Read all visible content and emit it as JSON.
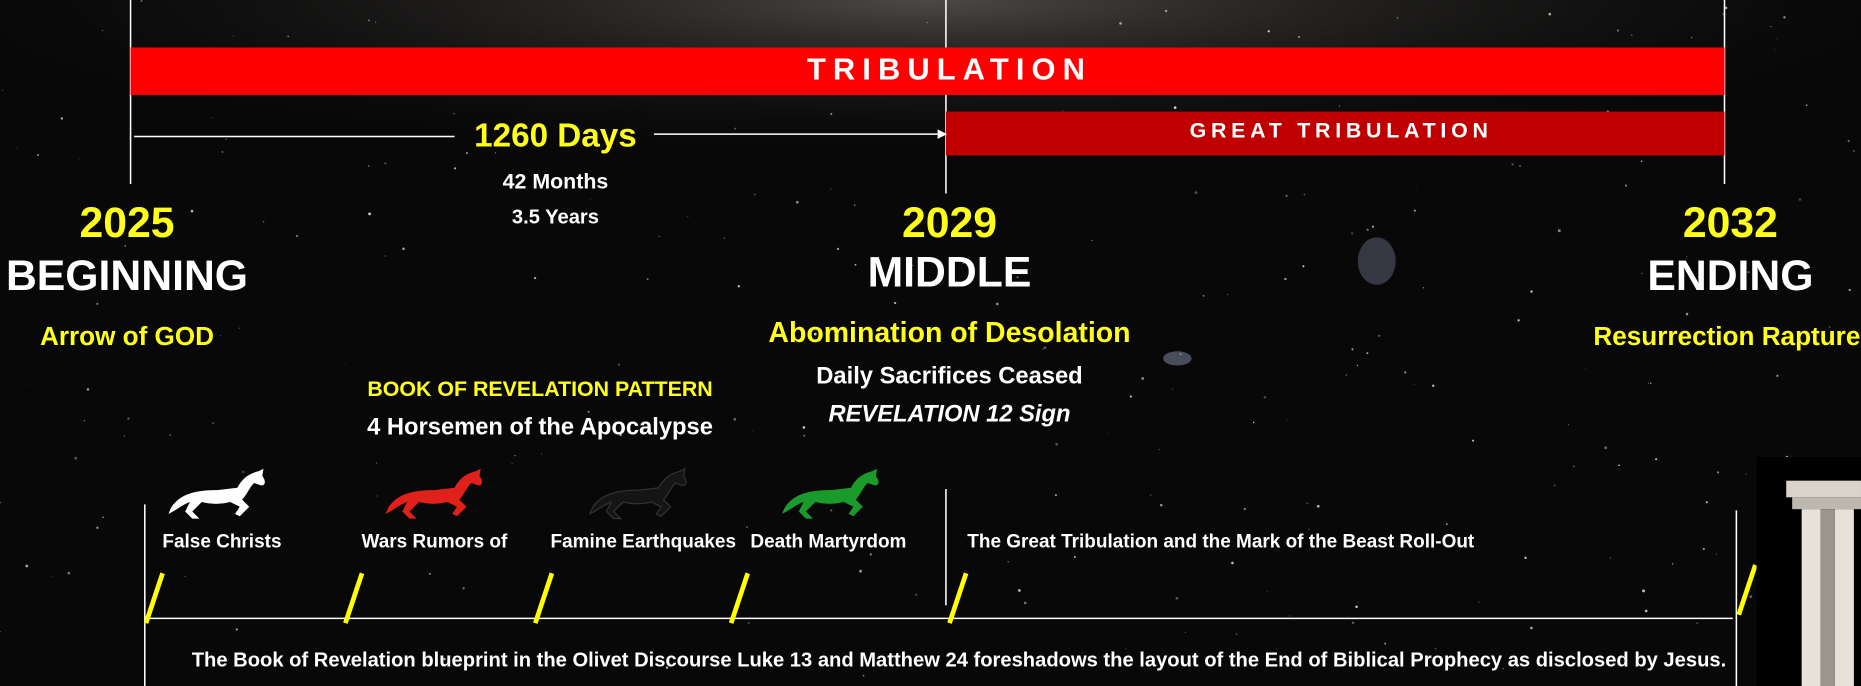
{
  "header": {
    "banner": "TRIBULATION",
    "sub_banner": "GREAT TRIBULATION"
  },
  "duration": {
    "days": "1260 Days",
    "months": "42 Months",
    "years": "3.5 Years"
  },
  "milestones": [
    {
      "year": "2025",
      "label": "BEGINNING",
      "event": "Arrow of GOD"
    },
    {
      "year": "2029",
      "label": "MIDDLE",
      "event": "Abomination of Desolation",
      "notes": [
        "Daily Sacrifices Ceased",
        "REVELATION 12 Sign"
      ]
    },
    {
      "year": "2032",
      "label": "ENDING",
      "event": "Resurrection Rapture"
    }
  ],
  "pattern": {
    "title": "BOOK OF REVELATION PATTERN",
    "subtitle": "4 Horsemen of the Apocalypse"
  },
  "horsemen": [
    "False Christs",
    "Wars Rumors of",
    "Famine Earthquakes",
    "Death Martyrdom"
  ],
  "roll_out": "The Great Tribulation and the Mark of the Beast Roll-Out",
  "footer": "The Book of Revelation blueprint in the Olivet Discourse Luke 13 and Matthew 24 foreshadows the layout of the End of Biblical Prophecy as disclosed by Jesus."
}
